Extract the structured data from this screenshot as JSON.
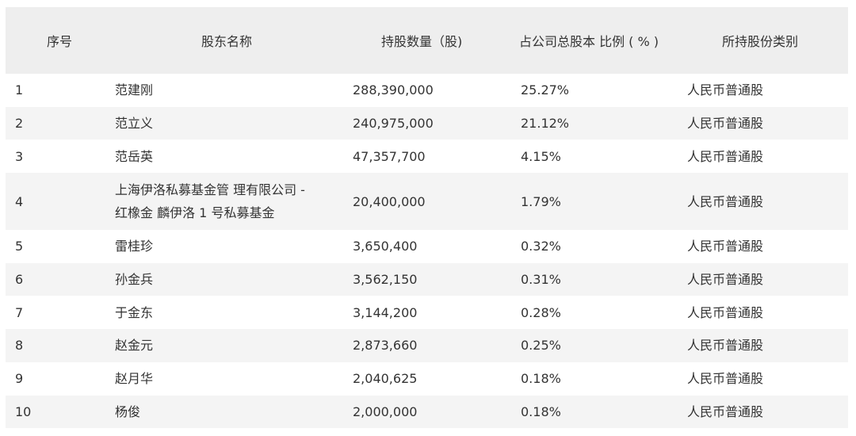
{
  "headers": {
    "index": "序号",
    "name": "股东名称",
    "quantity": "持股数量（股)",
    "ratio": "占公司总股本 比例 ( % )",
    "type": "所持股份类别"
  },
  "rows": [
    {
      "index": "1",
      "name": [
        "范建刚"
      ],
      "quantity": "288,390,000",
      "ratio": "25.27%",
      "type": "人民币普通股"
    },
    {
      "index": "2",
      "name": [
        "范立义"
      ],
      "quantity": "240,975,000",
      "ratio": "21.12%",
      "type": "人民币普通股"
    },
    {
      "index": "3",
      "name": [
        "范岳英"
      ],
      "quantity": "47,357,700",
      "ratio": "4.15%",
      "type": "人民币普通股"
    },
    {
      "index": "4",
      "name": [
        "上海伊洛私募基金管 理有限公司 -",
        "红橡金 麟伊洛 1 号私募基金"
      ],
      "quantity": "20,400,000",
      "ratio": "1.79%",
      "type": "人民币普通股"
    },
    {
      "index": "5",
      "name": [
        "雷桂珍"
      ],
      "quantity": "3,650,400",
      "ratio": "0.32%",
      "type": "人民币普通股"
    },
    {
      "index": "6",
      "name": [
        "孙金兵"
      ],
      "quantity": "3,562,150",
      "ratio": "0.31%",
      "type": "人民币普通股"
    },
    {
      "index": "7",
      "name": [
        "于金东"
      ],
      "quantity": "3,144,200",
      "ratio": "0.28%",
      "type": "人民币普通股"
    },
    {
      "index": "8",
      "name": [
        "赵金元"
      ],
      "quantity": "2,873,660",
      "ratio": "0.25%",
      "type": "人民币普通股"
    },
    {
      "index": "9",
      "name": [
        "赵月华"
      ],
      "quantity": "2,040,625",
      "ratio": "0.18%",
      "type": "人民币普通股"
    },
    {
      "index": "10",
      "name": [
        "杨俊"
      ],
      "quantity": "2,000,000",
      "ratio": "0.18%",
      "type": "人民币普通股"
    }
  ]
}
